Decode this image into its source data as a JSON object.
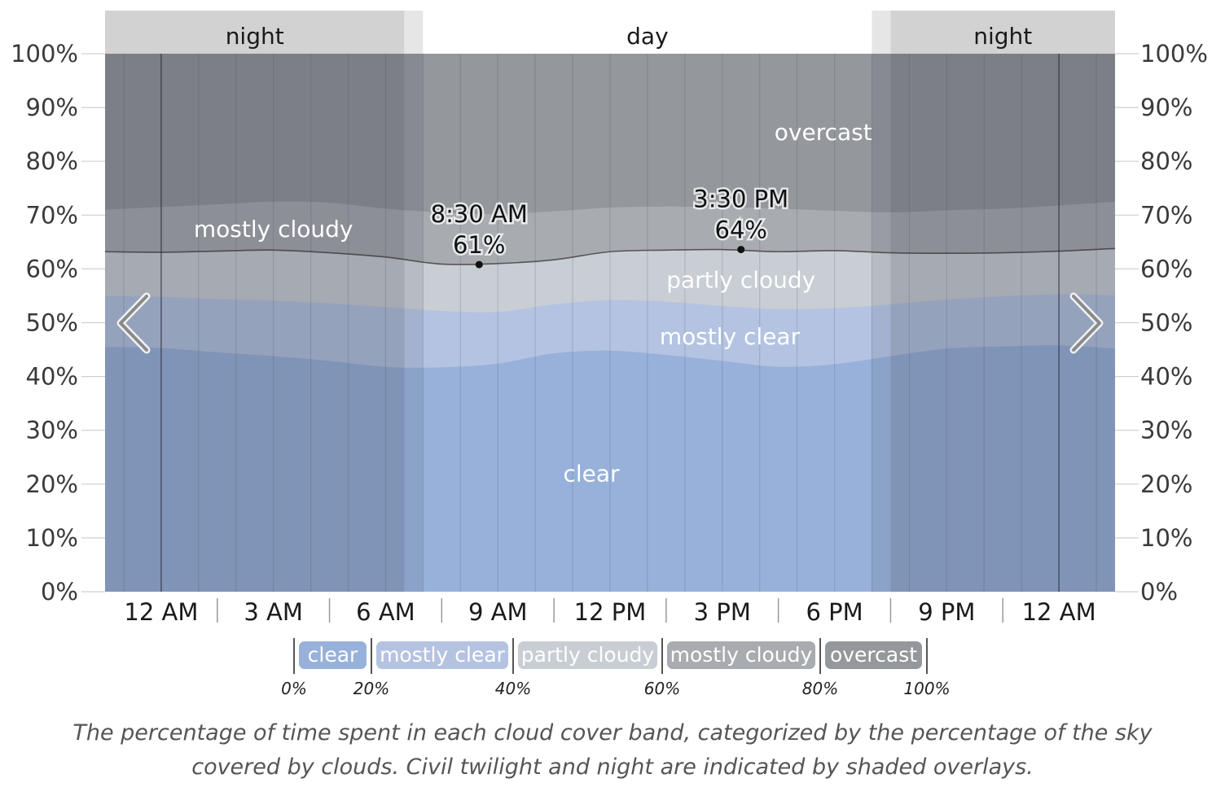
{
  "chart_data": {
    "type": "area",
    "x_ticks": [
      "12 AM",
      "3 AM",
      "6 AM",
      "9 AM",
      "12 PM",
      "3 PM",
      "6 PM",
      "9 PM",
      "12 AM"
    ],
    "y_left_ticks": [
      "0%",
      "10%",
      "20%",
      "30%",
      "40%",
      "50%",
      "60%",
      "70%",
      "80%",
      "90%",
      "100%"
    ],
    "y_right_ticks": [
      "100%",
      "90%",
      "80%",
      "70%",
      "60%",
      "50%",
      "40%",
      "30%",
      "20%",
      "10%",
      "0%"
    ],
    "ylim": [
      0,
      100
    ],
    "x_range_hours": [
      -1.5,
      25.5
    ],
    "periods": [
      {
        "label": "night",
        "start": -1.5,
        "end": 6.5
      },
      {
        "label": "day",
        "start": 7.0,
        "end": 19.0
      },
      {
        "label": "night",
        "start": 19.5,
        "end": 25.5
      }
    ],
    "twilight": [
      {
        "start": 6.5,
        "end": 7.0
      },
      {
        "start": 19.0,
        "end": 19.5
      }
    ],
    "x": [
      -1.5,
      0,
      1.5,
      3,
      4.5,
      6,
      7.5,
      9,
      10.5,
      12,
      13.5,
      15,
      16.5,
      18,
      19.5,
      21,
      22.5,
      24,
      25.5
    ],
    "series": [
      {
        "name": "clear",
        "color": "#98b1da",
        "values": [
          45.5,
          45.3,
          44.5,
          43.8,
          42.9,
          41.8,
          41.7,
          42.4,
          44.3,
          44.8,
          44.0,
          42.9,
          41.8,
          42.3,
          43.8,
          45.2,
          45.6,
          45.8,
          45.2
        ]
      },
      {
        "name": "mostly clear",
        "color": "#b4c3e1",
        "values": [
          55.0,
          54.8,
          54.4,
          54.1,
          53.6,
          52.9,
          52.2,
          52.0,
          53.4,
          54.2,
          53.9,
          53.1,
          52.5,
          52.7,
          53.4,
          54.3,
          54.9,
          55.3,
          55.1
        ]
      },
      {
        "name": "partly cloudy",
        "color": "#c9cdd4",
        "values": [
          63.2,
          63.1,
          63.3,
          63.5,
          63.0,
          62.2,
          60.9,
          61.0,
          61.7,
          63.2,
          63.5,
          63.6,
          63.2,
          63.4,
          63.0,
          62.9,
          63.0,
          63.3,
          63.8
        ]
      },
      {
        "name": "mostly cloudy",
        "color": "#a8abb0",
        "values": [
          71.0,
          71.5,
          72.0,
          72.5,
          72.3,
          71.2,
          70.5,
          70.2,
          70.7,
          71.4,
          71.6,
          71.5,
          71.2,
          70.8,
          70.5,
          70.9,
          71.2,
          71.8,
          72.5
        ]
      },
      {
        "name": "overcast",
        "color": "#94979c",
        "values": [
          100,
          100,
          100,
          100,
          100,
          100,
          100,
          100,
          100,
          100,
          100,
          100,
          100,
          100,
          100,
          100,
          100,
          100,
          100
        ]
      }
    ],
    "band_labels": [
      {
        "text": "overcast",
        "x": 17.7,
        "y": 85.5
      },
      {
        "text": "mostly cloudy",
        "x": 3.0,
        "y": 67.5
      },
      {
        "text": "partly cloudy",
        "x": 15.5,
        "y": 58.0
      },
      {
        "text": "mostly clear",
        "x": 15.2,
        "y": 47.5
      },
      {
        "text": "clear",
        "x": 11.5,
        "y": 22.0
      }
    ],
    "annotations": [
      {
        "time": "8:30 AM",
        "value": "61%",
        "x": 8.5,
        "y": 60.8
      },
      {
        "time": "3:30 PM",
        "value": "64%",
        "x": 15.5,
        "y": 63.6
      }
    ]
  },
  "legend": {
    "items": [
      {
        "label": "clear",
        "color": "#98b1da"
      },
      {
        "label": "mostly clear",
        "color": "#b4c3e1"
      },
      {
        "label": "partly cloudy",
        "color": "#c9cdd4"
      },
      {
        "label": "mostly cloudy",
        "color": "#a8abb0"
      },
      {
        "label": "overcast",
        "color": "#94979c"
      }
    ],
    "percent_labels": [
      "0%",
      "20%",
      "40%",
      "60%",
      "80%",
      "100%"
    ]
  },
  "caption": "The percentage of time spent in each cloud cover band, categorized by the percentage of the sky covered by clouds. Civil twilight and night are indicated by shaded overlays.",
  "nav": {
    "prev_icon": "chevron-left-icon",
    "next_icon": "chevron-right-icon"
  }
}
